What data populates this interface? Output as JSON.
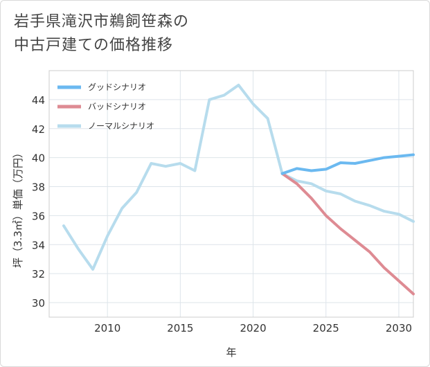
{
  "title_line1": "岩手県滝沢市鵜飼笹森の",
  "title_line2": "中古戸建ての価格推移",
  "chart_data": {
    "type": "line",
    "title": "岩手県滝沢市鵜飼笹森の中古戸建ての価格推移",
    "xlabel": "年",
    "ylabel": "坪（3.3㎡）単価（万円）",
    "xlim": [
      2006,
      2031
    ],
    "ylim": [
      29,
      46
    ],
    "xticks": [
      2010,
      2015,
      2020,
      2025,
      2030
    ],
    "yticks": [
      30,
      32,
      34,
      36,
      38,
      40,
      42,
      44
    ],
    "grid": true,
    "legend_position": "top-left",
    "series": [
      {
        "name": "グッドシナリオ",
        "color": "#6bb9f0",
        "x": [
          2022,
          2023,
          2024,
          2025,
          2026,
          2027,
          2028,
          2029,
          2030,
          2031
        ],
        "values": [
          38.9,
          39.25,
          39.1,
          39.2,
          39.65,
          39.6,
          39.8,
          40.0,
          40.1,
          40.2
        ]
      },
      {
        "name": "バッドシナリオ",
        "color": "#de8b93",
        "x": [
          2022,
          2023,
          2024,
          2025,
          2026,
          2027,
          2028,
          2029,
          2030,
          2031
        ],
        "values": [
          38.9,
          38.2,
          37.2,
          36.0,
          35.1,
          34.3,
          33.5,
          32.4,
          31.5,
          30.6
        ]
      },
      {
        "name": "ノーマルシナリオ",
        "color": "#b7dced",
        "x": [
          2007,
          2008,
          2009,
          2010,
          2011,
          2012,
          2013,
          2014,
          2015,
          2016,
          2017,
          2018,
          2019,
          2020,
          2021,
          2022,
          2023,
          2024,
          2025,
          2026,
          2027,
          2028,
          2029,
          2030,
          2031
        ],
        "values": [
          35.3,
          33.7,
          32.3,
          34.6,
          36.5,
          37.6,
          39.6,
          39.4,
          39.6,
          39.1,
          44.0,
          44.3,
          45.0,
          43.7,
          42.7,
          38.9,
          38.4,
          38.2,
          37.7,
          37.5,
          37.0,
          36.7,
          36.3,
          36.1,
          35.6
        ]
      }
    ]
  }
}
